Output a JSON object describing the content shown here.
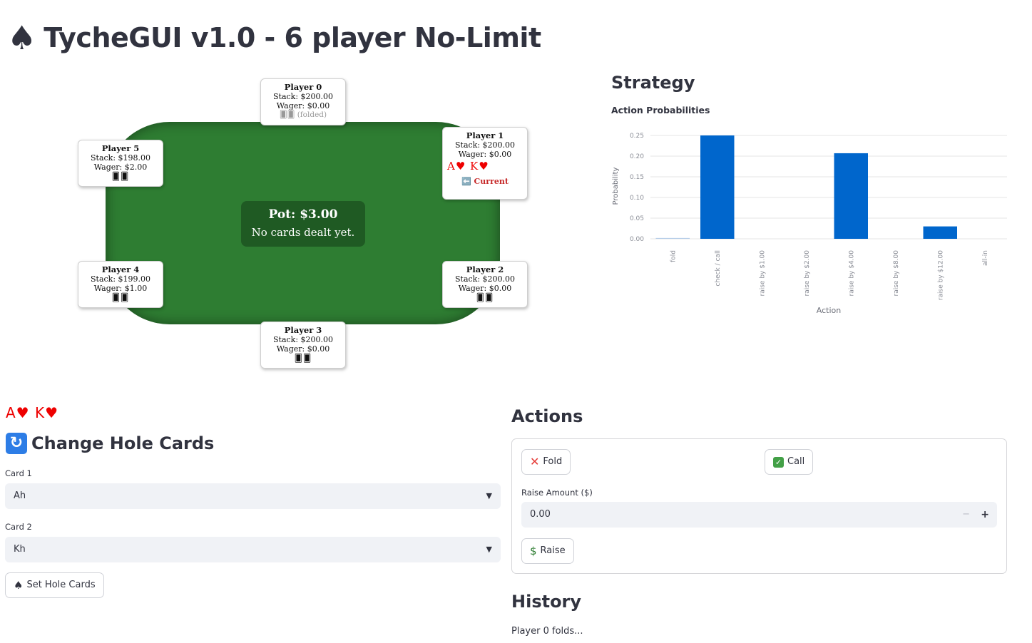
{
  "app": {
    "title": "TycheGUI v1.0 - 6 player No-Limit"
  },
  "table": {
    "pot": "Pot: $3.00",
    "board": "No cards dealt yet.",
    "players": [
      {
        "name": "Player 0",
        "stack": "Stack: $200.00",
        "wager": "Wager: $0.00",
        "status": "🂠🂠 (folded)"
      },
      {
        "name": "Player 1",
        "stack": "Stack: $200.00",
        "wager": "Wager: $0.00",
        "cards": "A♥  K♥",
        "current": "⬅️ Current"
      },
      {
        "name": "Player 2",
        "stack": "Stack: $200.00",
        "wager": "Wager: $0.00",
        "hidden": "🂠🂠"
      },
      {
        "name": "Player 3",
        "stack": "Stack: $200.00",
        "wager": "Wager: $0.00",
        "hidden": "🂠🂠"
      },
      {
        "name": "Player 4",
        "stack": "Stack: $199.00",
        "wager": "Wager: $1.00",
        "hidden": "🂠🂠"
      },
      {
        "name": "Player 5",
        "stack": "Stack: $198.00",
        "wager": "Wager: $2.00",
        "hidden": "🂠🂠"
      }
    ]
  },
  "strategy": {
    "title": "Strategy",
    "chart_data": {
      "type": "bar",
      "title": "Action Probabilities",
      "xlabel": "Action",
      "ylabel": "Probability",
      "categories": [
        "fold",
        "check / call",
        "raise by $1.00",
        "raise by $2.00",
        "raise by $4.00",
        "raise by $8.00",
        "raise by $12.00",
        "all-in"
      ],
      "values": [
        0.002,
        0.25,
        0,
        0,
        0.207,
        0,
        0.03,
        0
      ],
      "ylim": [
        0,
        0.25
      ],
      "yticks": [
        "0.00",
        "0.05",
        "0.10",
        "0.15",
        "0.20",
        "0.25"
      ],
      "grid": true,
      "bar_color": "#0066cc"
    }
  },
  "hole_cards": {
    "display": "A♥  K♥",
    "title": "Change Hole Cards",
    "card1_label": "Card 1",
    "card1_value": "Ah",
    "card2_label": "Card 2",
    "card2_value": "Kh",
    "set_button": "Set Hole Cards"
  },
  "actions": {
    "title": "Actions",
    "fold_label": "Fold",
    "call_label": "Call",
    "raise_amount_label": "Raise Amount ($)",
    "raise_amount_value": "0.00",
    "raise_label": "Raise"
  },
  "history": {
    "title": "History",
    "entries": [
      "Player 0 folds..."
    ]
  }
}
